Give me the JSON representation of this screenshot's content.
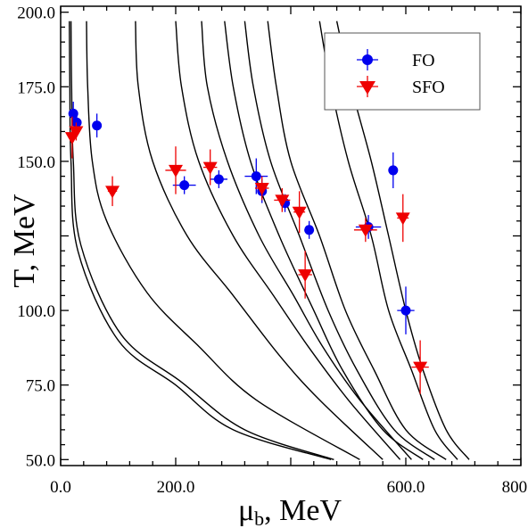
{
  "chart_data": {
    "type": "scatter",
    "title": "",
    "xlabel": "μ",
    "xlabel_sub": "b",
    "xlabel_suffix": ", MeV",
    "ylabel": "T, MeV",
    "xlim": [
      0,
      800
    ],
    "ylim": [
      48,
      202
    ],
    "x_major_ticks": [
      0,
      200,
      400,
      600,
      800
    ],
    "x_tick_labels": [
      "0.0",
      "200.0",
      "",
      "600.0",
      "800.0"
    ],
    "y_major_ticks": [
      50,
      75,
      100,
      125,
      150,
      175,
      200
    ],
    "y_tick_labels": [
      "50.0",
      "75.0",
      "100.0",
      "",
      "150.0",
      "175.0",
      "200.0"
    ],
    "grid": false,
    "legend_position": "top-right",
    "colors": {
      "fo": "#0000ee",
      "sfo": "#ee0000",
      "curves": "#000000"
    },
    "series": [
      {
        "name": "FO",
        "marker": "circle",
        "points": [
          {
            "x": 22,
            "y": 166,
            "xerr": 4,
            "yerr": 4
          },
          {
            "x": 28,
            "y": 163,
            "xerr": 4,
            "yerr": 3
          },
          {
            "x": 63,
            "y": 162,
            "xerr": 6,
            "yerr": 4
          },
          {
            "x": 215,
            "y": 142,
            "xerr": 20,
            "yerr": 3
          },
          {
            "x": 275,
            "y": 144,
            "xerr": 15,
            "yerr": 3
          },
          {
            "x": 340,
            "y": 145,
            "xerr": 20,
            "yerr": 6
          },
          {
            "x": 350,
            "y": 140,
            "xerr": 8,
            "yerr": 4
          },
          {
            "x": 390,
            "y": 136,
            "xerr": 6,
            "yerr": 3
          },
          {
            "x": 432,
            "y": 127,
            "xerr": 8,
            "yerr": 3
          },
          {
            "x": 535,
            "y": 128,
            "xerr": 22,
            "yerr": 4
          },
          {
            "x": 578,
            "y": 147,
            "xerr": 8,
            "yerr": 6
          },
          {
            "x": 600,
            "y": 100,
            "xerr": 15,
            "yerr": 8
          }
        ]
      },
      {
        "name": "SFO",
        "marker": "triangle-down",
        "points": [
          {
            "x": 20,
            "y": 158,
            "xerr": 4,
            "yerr": 7
          },
          {
            "x": 27,
            "y": 160,
            "xerr": 4,
            "yerr": 3
          },
          {
            "x": 90,
            "y": 140,
            "xerr": 8,
            "yerr": 5
          },
          {
            "x": 200,
            "y": 147,
            "xerr": 18,
            "yerr": 8
          },
          {
            "x": 260,
            "y": 148,
            "xerr": 12,
            "yerr": 6
          },
          {
            "x": 350,
            "y": 141,
            "xerr": 12,
            "yerr": 4
          },
          {
            "x": 385,
            "y": 137,
            "xerr": 14,
            "yerr": 4
          },
          {
            "x": 415,
            "y": 133,
            "xerr": 10,
            "yerr": 7
          },
          {
            "x": 425,
            "y": 112,
            "xerr": 12,
            "yerr": 8
          },
          {
            "x": 530,
            "y": 127,
            "xerr": 20,
            "yerr": 4
          },
          {
            "x": 595,
            "y": 131,
            "xerr": 10,
            "yerr": 8
          },
          {
            "x": 625,
            "y": 81,
            "xerr": 15,
            "yerr": 9
          }
        ]
      }
    ],
    "curves": [
      [
        [
          15,
          197
        ],
        [
          16,
          175
        ],
        [
          18,
          150
        ],
        [
          30,
          120
        ],
        [
          100,
          90
        ],
        [
          200,
          75
        ],
        [
          300,
          60
        ],
        [
          470,
          50
        ]
      ],
      [
        [
          18,
          197
        ],
        [
          19,
          175
        ],
        [
          22,
          150
        ],
        [
          35,
          122
        ],
        [
          105,
          92
        ],
        [
          210,
          76
        ],
        [
          320,
          60
        ],
        [
          475,
          50
        ]
      ],
      [
        [
          45,
          197
        ],
        [
          47,
          175
        ],
        [
          55,
          150
        ],
        [
          80,
          130
        ],
        [
          150,
          106
        ],
        [
          240,
          88
        ],
        [
          340,
          70
        ],
        [
          520,
          50
        ]
      ],
      [
        [
          130,
          197
        ],
        [
          135,
          175
        ],
        [
          160,
          150
        ],
        [
          220,
          125
        ],
        [
          300,
          105
        ],
        [
          380,
          85
        ],
        [
          450,
          70
        ],
        [
          560,
          50
        ]
      ],
      [
        [
          200,
          197
        ],
        [
          210,
          175
        ],
        [
          240,
          150
        ],
        [
          300,
          125
        ],
        [
          370,
          105
        ],
        [
          430,
          88
        ],
        [
          500,
          70
        ],
        [
          590,
          50
        ]
      ],
      [
        [
          245,
          197
        ],
        [
          255,
          175
        ],
        [
          290,
          150
        ],
        [
          345,
          125
        ],
        [
          405,
          105
        ],
        [
          455,
          88
        ],
        [
          520,
          70
        ],
        [
          610,
          50
        ]
      ],
      [
        [
          285,
          197
        ],
        [
          300,
          175
        ],
        [
          330,
          150
        ],
        [
          380,
          125
        ],
        [
          440,
          100
        ],
        [
          490,
          80
        ],
        [
          560,
          60
        ],
        [
          630,
          50
        ]
      ],
      [
        [
          320,
          197
        ],
        [
          335,
          175
        ],
        [
          365,
          150
        ],
        [
          415,
          125
        ],
        [
          465,
          100
        ],
        [
          515,
          80
        ],
        [
          580,
          60
        ],
        [
          650,
          50
        ]
      ],
      [
        [
          360,
          197
        ],
        [
          375,
          175
        ],
        [
          400,
          150
        ],
        [
          450,
          125
        ],
        [
          495,
          100
        ],
        [
          545,
          80
        ],
        [
          600,
          60
        ],
        [
          670,
          50
        ]
      ],
      [
        [
          450,
          197
        ],
        [
          470,
          175
        ],
        [
          500,
          150
        ],
        [
          540,
          125
        ],
        [
          570,
          100
        ],
        [
          610,
          80
        ],
        [
          650,
          60
        ],
        [
          690,
          50
        ]
      ],
      [
        [
          480,
          197
        ],
        [
          505,
          175
        ],
        [
          540,
          150
        ],
        [
          570,
          125
        ],
        [
          600,
          100
        ],
        [
          630,
          80
        ],
        [
          670,
          60
        ],
        [
          710,
          50
        ]
      ]
    ]
  }
}
